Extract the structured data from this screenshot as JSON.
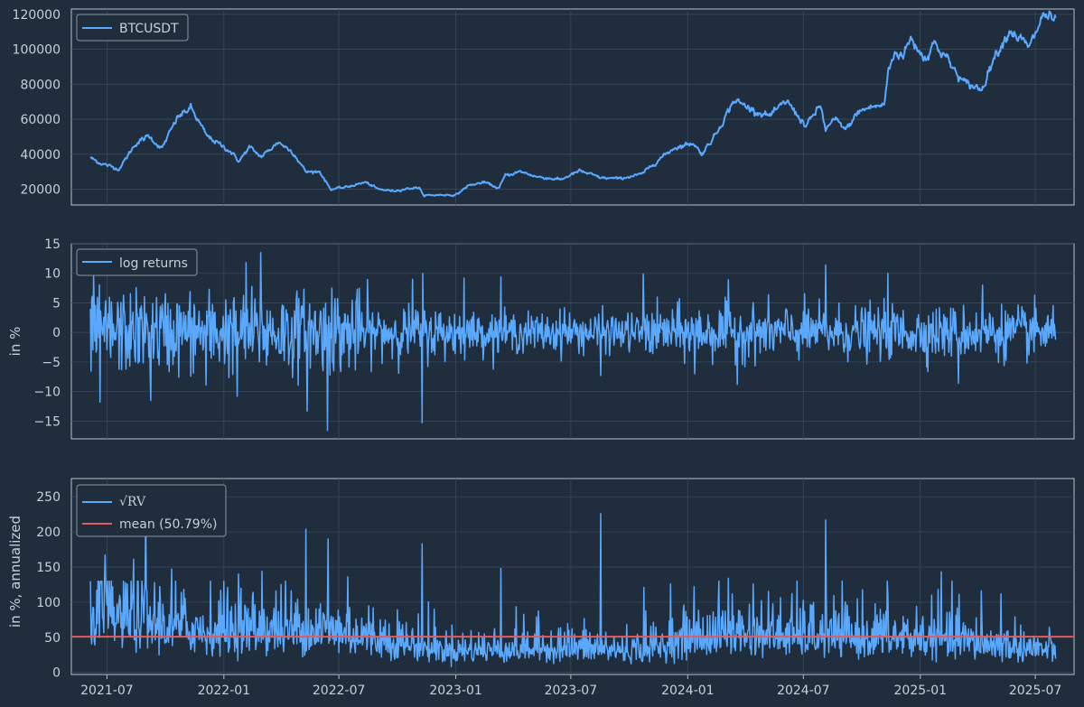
{
  "chart_data": [
    {
      "type": "line",
      "title": "",
      "xlabel": "",
      "ylabel": "",
      "ylim": [
        11000,
        123000
      ],
      "yticks": [
        20000,
        40000,
        60000,
        80000,
        100000,
        120000
      ],
      "grid": true,
      "legend_position": "top-left",
      "series": [
        {
          "name": "BTCUSDT",
          "color": "#5aa9ff",
          "x": [
            "2021-06-05",
            "2021-06-20",
            "2021-07-20",
            "2021-08-15",
            "2021-09-05",
            "2021-09-25",
            "2021-10-20",
            "2021-11-10",
            "2021-12-05",
            "2022-01-10",
            "2022-01-25",
            "2022-02-10",
            "2022-03-01",
            "2022-03-28",
            "2022-04-20",
            "2022-05-10",
            "2022-06-01",
            "2022-06-18",
            "2022-07-10",
            "2022-08-12",
            "2022-09-01",
            "2022-09-25",
            "2022-10-20",
            "2022-11-05",
            "2022-11-10",
            "2022-12-15",
            "2023-01-01",
            "2023-01-20",
            "2023-02-15",
            "2023-03-10",
            "2023-03-20",
            "2023-04-14",
            "2023-05-10",
            "2023-06-15",
            "2023-07-15",
            "2023-08-18",
            "2023-09-15",
            "2023-10-20",
            "2023-11-15",
            "2023-12-10",
            "2024-01-10",
            "2024-01-23",
            "2024-02-15",
            "2024-03-14",
            "2024-04-20",
            "2024-05-10",
            "2024-06-05",
            "2024-07-05",
            "2024-07-28",
            "2024-08-05",
            "2024-08-20",
            "2024-09-06",
            "2024-09-25",
            "2024-10-15",
            "2024-11-05",
            "2024-11-12",
            "2024-11-22",
            "2024-12-05",
            "2024-12-17",
            "2025-01-10",
            "2025-01-20",
            "2025-02-10",
            "2025-02-25",
            "2025-03-10",
            "2025-04-08",
            "2025-04-25",
            "2025-05-22",
            "2025-06-10",
            "2025-06-22",
            "2025-07-14",
            "2025-07-25",
            "2025-08-02"
          ],
          "values": [
            38000,
            35000,
            31500,
            46000,
            50500,
            43000,
            61000,
            66500,
            50500,
            42000,
            36000,
            44000,
            38500,
            47000,
            41000,
            30000,
            30000,
            20000,
            21000,
            24000,
            20000,
            19000,
            20500,
            21000,
            16500,
            16800,
            16600,
            22000,
            24000,
            20500,
            28000,
            30000,
            27000,
            25500,
            30500,
            26500,
            26000,
            28500,
            36500,
            43500,
            46500,
            40000,
            52000,
            71000,
            64000,
            62000,
            70500,
            56000,
            68000,
            54000,
            60000,
            54000,
            64000,
            67000,
            68000,
            88000,
            98000,
            97000,
            106000,
            94000,
            104000,
            96000,
            87000,
            81000,
            77000,
            94000,
            111000,
            105000,
            101000,
            120000,
            118000,
            115000
          ]
        }
      ]
    },
    {
      "type": "line",
      "title": "",
      "xlabel": "",
      "ylabel": "in %",
      "ylim": [
        -18,
        15
      ],
      "yticks": [
        -15,
        -10,
        -5,
        0,
        5,
        10,
        15
      ],
      "grid": true,
      "legend_position": "top-left",
      "series": [
        {
          "name": "log returns",
          "color": "#5aa9ff",
          "noise_std": 2.2,
          "spikes": [
            {
              "x": "2021-06-10",
              "y": 9.5
            },
            {
              "x": "2021-06-20",
              "y": -11.8
            },
            {
              "x": "2021-09-08",
              "y": -11.5
            },
            {
              "x": "2021-12-04",
              "y": -8.9
            },
            {
              "x": "2022-01-22",
              "y": -10.8
            },
            {
              "x": "2022-02-05",
              "y": 11.8
            },
            {
              "x": "2022-02-28",
              "y": 13.5
            },
            {
              "x": "2022-05-12",
              "y": -13.3
            },
            {
              "x": "2022-06-13",
              "y": -16.6
            },
            {
              "x": "2022-06-20",
              "y": 7.5
            },
            {
              "x": "2022-10-25",
              "y": 9.0
            },
            {
              "x": "2022-11-09",
              "y": -15.3
            },
            {
              "x": "2022-11-10",
              "y": 10.0
            },
            {
              "x": "2023-01-14",
              "y": 9.2
            },
            {
              "x": "2023-03-13",
              "y": 9.4
            },
            {
              "x": "2023-06-21",
              "y": 4.2
            },
            {
              "x": "2023-08-17",
              "y": -7.3
            },
            {
              "x": "2023-10-23",
              "y": 9.9
            },
            {
              "x": "2024-01-12",
              "y": -7.0
            },
            {
              "x": "2024-03-05",
              "y": 8.9
            },
            {
              "x": "2024-03-19",
              "y": -8.8
            },
            {
              "x": "2024-08-05",
              "y": 11.4
            },
            {
              "x": "2024-11-11",
              "y": 10.0
            },
            {
              "x": "2025-03-02",
              "y": -8.6
            },
            {
              "x": "2025-04-09",
              "y": 8.0
            }
          ]
        }
      ]
    },
    {
      "type": "line",
      "title": "",
      "xlabel": "",
      "ylabel": "in %, annualized",
      "ylim": [
        -3,
        276
      ],
      "yticks": [
        0,
        50,
        100,
        150,
        200,
        250
      ],
      "xticks": [
        "2021-07",
        "2022-01",
        "2022-07",
        "2023-01",
        "2023-07",
        "2024-01",
        "2024-07",
        "2025-01",
        "2025-07"
      ],
      "grid": true,
      "legend_position": "top-left",
      "mean_value": 50.79,
      "series": [
        {
          "name": "√RV",
          "color": "#5aa9ff",
          "baseline": [
            {
              "x": "2021-06-05",
              "y": 80
            },
            {
              "x": "2021-12-01",
              "y": 58
            },
            {
              "x": "2022-06-15",
              "y": 60
            },
            {
              "x": "2022-12-15",
              "y": 30
            },
            {
              "x": "2023-06-15",
              "y": 35
            },
            {
              "x": "2023-10-15",
              "y": 30
            },
            {
              "x": "2024-03-01",
              "y": 55
            },
            {
              "x": "2024-08-01",
              "y": 50
            },
            {
              "x": "2025-01-01",
              "y": 48
            },
            {
              "x": "2025-08-02",
              "y": 30
            }
          ],
          "spikes": [
            {
              "x": "2021-06-28",
              "y": 167
            },
            {
              "x": "2021-08-12",
              "y": 161
            },
            {
              "x": "2021-08-31",
              "y": 224
            },
            {
              "x": "2021-10-11",
              "y": 147
            },
            {
              "x": "2022-01-07",
              "y": 121
            },
            {
              "x": "2022-01-24",
              "y": 140
            },
            {
              "x": "2022-03-02",
              "y": 144
            },
            {
              "x": "2022-05-10",
              "y": 204
            },
            {
              "x": "2022-06-14",
              "y": 190
            },
            {
              "x": "2022-07-15",
              "y": 136
            },
            {
              "x": "2022-11-09",
              "y": 183
            },
            {
              "x": "2022-11-28",
              "y": 90
            },
            {
              "x": "2023-03-13",
              "y": 148
            },
            {
              "x": "2023-08-17",
              "y": 226
            },
            {
              "x": "2023-10-24",
              "y": 121
            },
            {
              "x": "2023-12-05",
              "y": 126
            },
            {
              "x": "2024-01-11",
              "y": 122
            },
            {
              "x": "2024-03-05",
              "y": 134
            },
            {
              "x": "2024-04-13",
              "y": 126
            },
            {
              "x": "2024-08-05",
              "y": 217
            },
            {
              "x": "2024-11-11",
              "y": 110
            },
            {
              "x": "2025-02-03",
              "y": 143
            },
            {
              "x": "2025-03-03",
              "y": 111
            },
            {
              "x": "2025-04-07",
              "y": 116
            },
            {
              "x": "2025-05-08",
              "y": 112
            }
          ]
        },
        {
          "name": "mean (50.79%)",
          "color": "#e65a5a",
          "values": [
            50.79
          ]
        }
      ]
    }
  ],
  "x_range": [
    "2021-05-06",
    "2025-08-31"
  ],
  "colors": {
    "background": "#1f2d3d",
    "line": "#5aa9ff",
    "mean": "#e65a5a",
    "grid": "#3b4a5a",
    "text": "#c8d0d8"
  }
}
